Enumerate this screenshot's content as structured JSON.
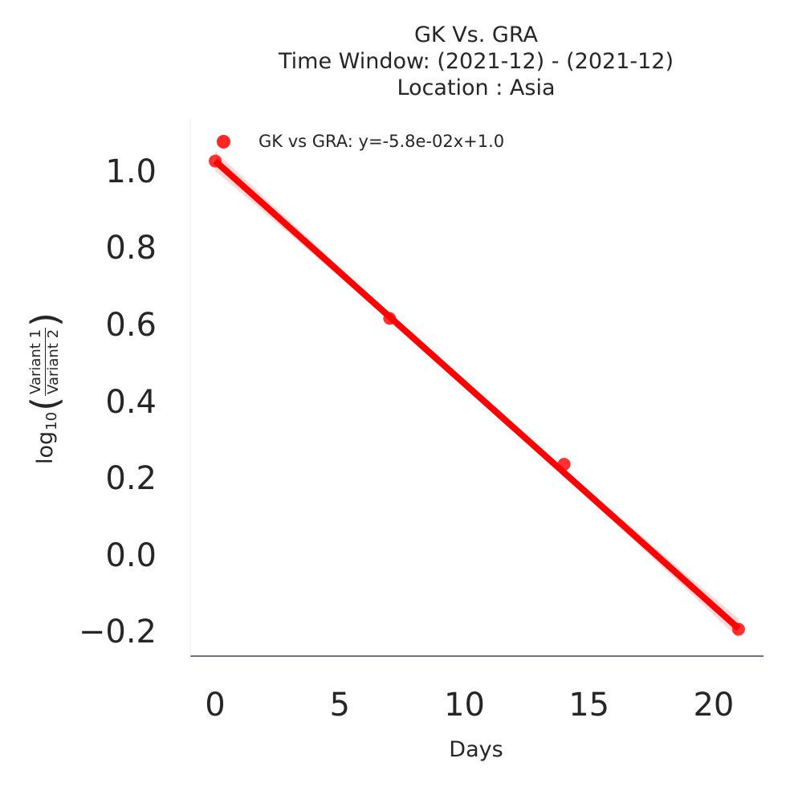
{
  "chart_data": {
    "type": "scatter",
    "title_lines": [
      "GK Vs. GRA",
      "Time Window: (2021-12) - (2021-12)",
      "Location : Asia"
    ],
    "xlabel": "Days",
    "ylabel": {
      "prefix": "log",
      "subscript": "10",
      "numerator": "Variant 1",
      "denominator": "Variant 2"
    },
    "xlim": [
      -1,
      22
    ],
    "ylim": [
      -0.26,
      1.14
    ],
    "x_ticks": [
      0,
      5,
      10,
      15,
      20
    ],
    "x_tick_labels": [
      "0",
      "5",
      "10",
      "15",
      "20"
    ],
    "y_ticks": [
      -0.2,
      0.0,
      0.2,
      0.4,
      0.6,
      0.8,
      1.0
    ],
    "y_tick_labels": [
      "−0.2",
      "0.0",
      "0.2",
      "0.4",
      "0.6",
      "0.8",
      "1.0"
    ],
    "grid": false,
    "legend_position": "top-left",
    "series": [
      {
        "name": "GK vs GRA: y=-5.8e-02x+1.0",
        "color": "#ff0000",
        "x": [
          0,
          7,
          14,
          21
        ],
        "y": [
          1.03,
          0.62,
          0.24,
          -0.19
        ],
        "fit": {
          "slope": -0.058,
          "intercept": 1.03
        }
      }
    ]
  }
}
